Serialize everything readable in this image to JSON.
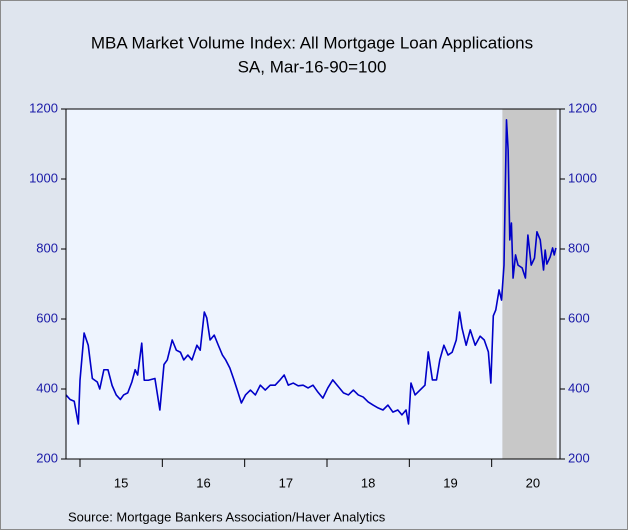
{
  "chart_data": {
    "type": "line",
    "title": "MBA Market Volume Index: All Mortgage Loan Applications",
    "subtitle": "SA, Mar-16-90=100",
    "source": "Source:  Mortgage Bankers Association/Haver Analytics",
    "color": "#0000c8",
    "shade": {
      "x": [
        2020.13,
        2020.79
      ],
      "color": "#c8c8c8"
    },
    "xlim": [
      2014.83,
      2020.83
    ],
    "xticks": [
      {
        "value": 2015,
        "label": "15"
      },
      {
        "value": 2016,
        "label": "16"
      },
      {
        "value": 2017,
        "label": "17"
      },
      {
        "value": 2018,
        "label": "18"
      },
      {
        "value": 2019,
        "label": "19"
      },
      {
        "value": 2020,
        "label": "20"
      }
    ],
    "ylim": [
      200,
      1200
    ],
    "yticks": [
      200,
      400,
      600,
      800,
      1000,
      1200
    ],
    "y2lim": [
      200,
      1200
    ],
    "y2ticks": [
      200,
      400,
      600,
      800,
      1000,
      1200
    ],
    "x": [
      2014.83,
      2014.88,
      2014.93,
      2014.98,
      2015.0,
      2015.05,
      2015.1,
      2015.15,
      2015.21,
      2015.24,
      2015.29,
      2015.34,
      2015.39,
      2015.44,
      2015.49,
      2015.53,
      2015.58,
      2015.63,
      2015.67,
      2015.7,
      2015.75,
      2015.78,
      2015.83,
      2015.91,
      2015.97,
      2016.02,
      2016.06,
      2016.12,
      2016.17,
      2016.22,
      2016.26,
      2016.31,
      2016.36,
      2016.42,
      2016.46,
      2016.51,
      2016.54,
      2016.58,
      2016.63,
      2016.68,
      2016.73,
      2016.77,
      2016.82,
      2016.87,
      2016.91,
      2016.96,
      2017.01,
      2017.07,
      2017.13,
      2017.19,
      2017.25,
      2017.31,
      2017.37,
      2017.43,
      2017.48,
      2017.53,
      2017.59,
      2017.65,
      2017.71,
      2017.77,
      2017.83,
      2017.89,
      2017.95,
      2018.01,
      2018.07,
      2018.13,
      2018.2,
      2018.26,
      2018.32,
      2018.38,
      2018.44,
      2018.5,
      2018.56,
      2018.62,
      2018.68,
      2018.74,
      2018.8,
      2018.86,
      2018.91,
      2018.96,
      2018.99,
      2019.02,
      2019.07,
      2019.13,
      2019.19,
      2019.23,
      2019.28,
      2019.33,
      2019.37,
      2019.42,
      2019.47,
      2019.52,
      2019.57,
      2019.61,
      2019.64,
      2019.69,
      2019.74,
      2019.8,
      2019.86,
      2019.91,
      2019.96,
      2019.99,
      2020.02,
      2020.05,
      2020.09,
      2020.12,
      2020.15,
      2020.18,
      2020.2,
      2020.22,
      2020.24,
      2020.26,
      2020.29,
      2020.32,
      2020.37,
      2020.41,
      2020.44,
      2020.48,
      2020.52,
      2020.55,
      2020.59,
      2020.63,
      2020.65,
      2020.67,
      2020.71,
      2020.74,
      2020.76,
      2020.78
    ],
    "values": [
      383,
      370,
      365,
      300,
      425,
      560,
      525,
      430,
      420,
      400,
      455,
      455,
      410,
      383,
      370,
      383,
      389,
      420,
      455,
      440,
      531,
      425,
      425,
      430,
      340,
      470,
      483,
      540,
      511,
      505,
      483,
      497,
      483,
      525,
      511,
      620,
      603,
      540,
      554,
      525,
      497,
      483,
      460,
      426,
      397,
      360,
      383,
      397,
      383,
      411,
      397,
      411,
      411,
      426,
      440,
      411,
      417,
      409,
      411,
      403,
      411,
      391,
      374,
      403,
      426,
      409,
      389,
      383,
      397,
      383,
      377,
      363,
      354,
      346,
      340,
      354,
      334,
      340,
      326,
      340,
      300,
      417,
      383,
      397,
      411,
      506,
      426,
      426,
      483,
      525,
      497,
      505,
      540,
      620,
      574,
      525,
      569,
      525,
      551,
      540,
      506,
      417,
      609,
      626,
      683,
      654,
      754,
      1169,
      1083,
      826,
      874,
      717,
      783,
      754,
      746,
      717,
      840,
      754,
      774,
      849,
      826,
      740,
      797,
      757,
      777,
      803,
      783,
      803
    ]
  }
}
